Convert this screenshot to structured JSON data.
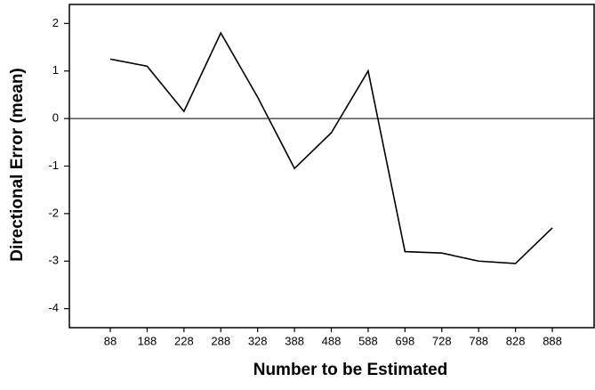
{
  "chart_data": {
    "type": "line",
    "x_label": "Number to be Estimated",
    "y_label": "Directional Error (mean)",
    "categories": [
      "88",
      "188",
      "228",
      "288",
      "328",
      "388",
      "488",
      "588",
      "698",
      "728",
      "788",
      "828",
      "888"
    ],
    "series": [
      {
        "name": "Directional Error",
        "color": "#000000",
        "values": [
          1.25,
          1.1,
          0.15,
          1.8,
          0.45,
          -1.05,
          -0.3,
          1.0,
          -2.8,
          -2.83,
          -3.0,
          -3.05,
          -2.3
        ]
      }
    ],
    "ylim": [
      -4.4,
      2.4
    ],
    "yticks": [
      -4,
      -3,
      -2,
      -1,
      0,
      1,
      2
    ],
    "reference_line": 0
  }
}
